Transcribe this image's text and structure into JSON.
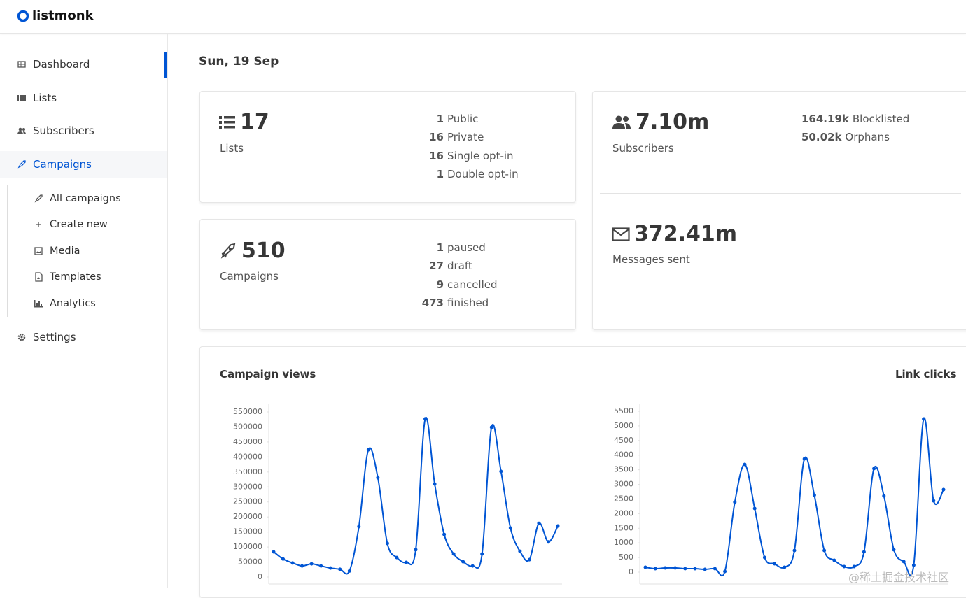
{
  "header": {
    "logo": "listmonk"
  },
  "sidebar": {
    "items": [
      "Dashboard",
      "Lists",
      "Subscribers",
      "Campaigns"
    ],
    "sub_items": [
      "All campaigns",
      "Create new",
      "Media",
      "Templates",
      "Analytics"
    ],
    "footer_item": "Settings"
  },
  "main": {
    "date": "Sun, 19 Sep",
    "lists_card": {
      "count": 17,
      "label": "Lists",
      "rows": [
        {
          "n": 1,
          "label": "Public"
        },
        {
          "n": 16,
          "label": "Private"
        },
        {
          "n": 16,
          "label": "Single opt-in"
        },
        {
          "n": 1,
          "label": "Double opt-in"
        }
      ]
    },
    "campaigns_card": {
      "count": 510,
      "label": "Campaigns",
      "rows": [
        {
          "n": 1,
          "label": "paused"
        },
        {
          "n": 27,
          "label": "draft"
        },
        {
          "n": 9,
          "label": "cancelled"
        },
        {
          "n": 473,
          "label": "finished"
        }
      ]
    },
    "subscribers_card": {
      "count": "7.10m",
      "label": "Subscribers",
      "rows": [
        {
          "n": "164.19k",
          "label": "Blocklisted"
        },
        {
          "n": "50.02k",
          "label": "Orphans"
        }
      ]
    },
    "messages_card": {
      "count": "372.41m",
      "label": "Messages sent"
    }
  },
  "watermark": "@稀土掘金技术社区",
  "chart_data": [
    {
      "type": "line",
      "title": "Campaign views",
      "color": "#0055d4",
      "categories": [
        null,
        null,
        null,
        null,
        null,
        null,
        null,
        null,
        null,
        null,
        null,
        null,
        null,
        null,
        null,
        null,
        null,
        null,
        null,
        null,
        null,
        null,
        null,
        null,
        null,
        null,
        null,
        null,
        null,
        null,
        null
      ],
      "values": [
        84000,
        60000,
        47000,
        37000,
        44000,
        37000,
        30000,
        26000,
        20000,
        168000,
        424000,
        331000,
        112000,
        65000,
        49000,
        91000,
        527000,
        310000,
        142000,
        77000,
        51000,
        37000,
        77000,
        499000,
        352000,
        163000,
        86000,
        58000,
        179000,
        117000,
        170000
      ],
      "ylim": [
        0,
        550000
      ],
      "yticks": [
        0,
        50000,
        100000,
        150000,
        200000,
        250000,
        300000,
        350000,
        400000,
        450000,
        500000,
        550000
      ]
    },
    {
      "type": "line",
      "title": "Link clicks",
      "color": "#0055d4",
      "categories": [
        null,
        null,
        null,
        null,
        null,
        null,
        null,
        null,
        null,
        null,
        null,
        null,
        null,
        null,
        null,
        null,
        null,
        null,
        null,
        null,
        null,
        null,
        null,
        null,
        null,
        null,
        null,
        null,
        null,
        null,
        null
      ],
      "values": [
        167,
        120,
        143,
        143,
        120,
        120,
        96,
        120,
        24,
        2391,
        3683,
        2176,
        502,
        287,
        167,
        741,
        3874,
        2630,
        741,
        406,
        191,
        191,
        693,
        3540,
        2606,
        765,
        358,
        239,
        5237,
        2438,
        2821
      ],
      "ylim": [
        0,
        5500
      ],
      "yticks": [
        0,
        500,
        1000,
        1500,
        2000,
        2500,
        3000,
        3500,
        4000,
        4500,
        5000,
        5500
      ]
    }
  ]
}
